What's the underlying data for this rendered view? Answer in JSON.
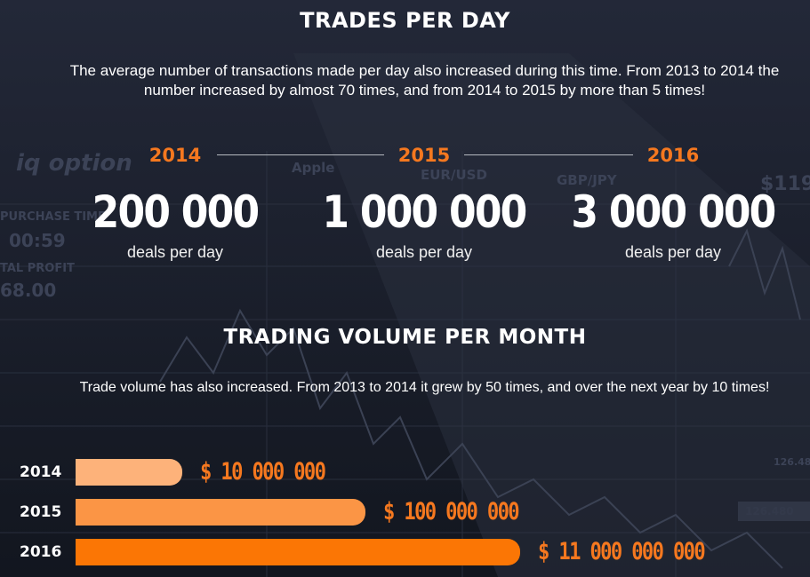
{
  "trades": {
    "title": "TRADES PER DAY",
    "description": "The average number of transactions made per day also increased during this time. From 2013 to 2014 the number increased by almost 70 times, and from 2014 to 2015 by more than 5 times!",
    "items": [
      {
        "year": "2014",
        "value": "200 000",
        "unit": "deals per day"
      },
      {
        "year": "2015",
        "value": "1 000 000",
        "unit": "deals per day"
      },
      {
        "year": "2016",
        "value": "3 000 000",
        "unit": "deals per day"
      }
    ]
  },
  "volume": {
    "title": "TRADING VOLUME PER MONTH",
    "description": "Trade volume has also increased. From 2013 to 2014 it grew by 50 times, and over the next year by 10 times!"
  },
  "colors": {
    "accent": "#f5781f",
    "bar_2014": "#fdb27a",
    "bar_2015": "#fb9545",
    "bar_2016": "#fb7605",
    "background": "#1b1f2a"
  },
  "chart_data": {
    "type": "bar",
    "orientation": "horizontal",
    "categories": [
      "2014",
      "2015",
      "2016"
    ],
    "values": [
      10000000,
      100000000,
      11000000000
    ],
    "value_labels": [
      "$ 10 000 000",
      "$ 100 000 000",
      "$ 11 000 000 000"
    ]
  }
}
